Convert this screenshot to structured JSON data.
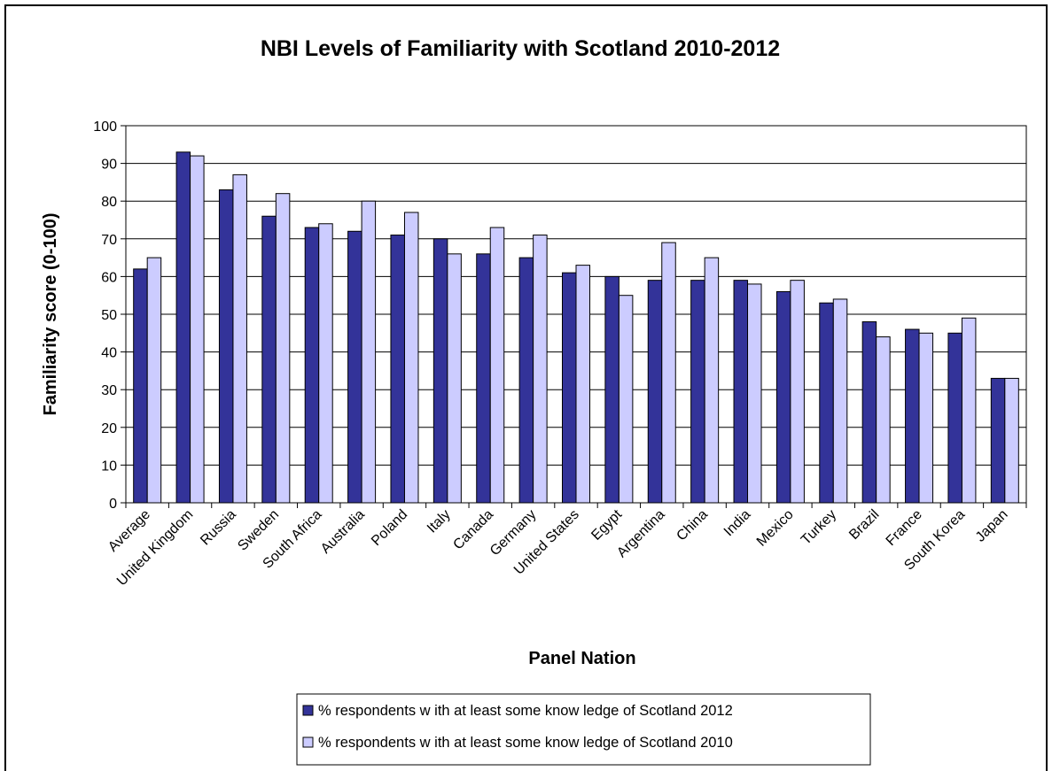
{
  "chart_data": {
    "type": "bar",
    "title": "NBI Levels of Familiarity with Scotland 2010-2012",
    "xlabel": "Panel Nation",
    "ylabel": "Familiarity score (0-100)",
    "ylim": [
      0,
      100
    ],
    "yticks": [
      0,
      10,
      20,
      30,
      40,
      50,
      60,
      70,
      80,
      90,
      100
    ],
    "grid": true,
    "legend_position": "bottom-center",
    "categories": [
      "Average",
      "United Kingdom",
      "Russia",
      "Sweden",
      "South Africa",
      "Australia",
      "Poland",
      "Italy",
      "Canada",
      "Germany",
      "United States",
      "Egypt",
      "Argentina",
      "China",
      "India",
      "Mexico",
      "Turkey",
      "Brazil",
      "France",
      "South Korea",
      "Japan"
    ],
    "series": [
      {
        "name": "% respondents w ith at least some know ledge of Scotland 2012",
        "color": "#333399",
        "values": [
          62,
          93,
          83,
          76,
          73,
          72,
          71,
          70,
          66,
          65,
          61,
          60,
          59,
          59,
          59,
          56,
          53,
          48,
          46,
          45,
          33
        ]
      },
      {
        "name": "% respondents w ith at least some know ledge of Scotland 2010",
        "color": "#ccccff",
        "values": [
          65,
          92,
          87,
          82,
          74,
          80,
          77,
          66,
          73,
          71,
          63,
          55,
          69,
          65,
          58,
          59,
          54,
          44,
          45,
          49,
          33
        ]
      }
    ]
  }
}
